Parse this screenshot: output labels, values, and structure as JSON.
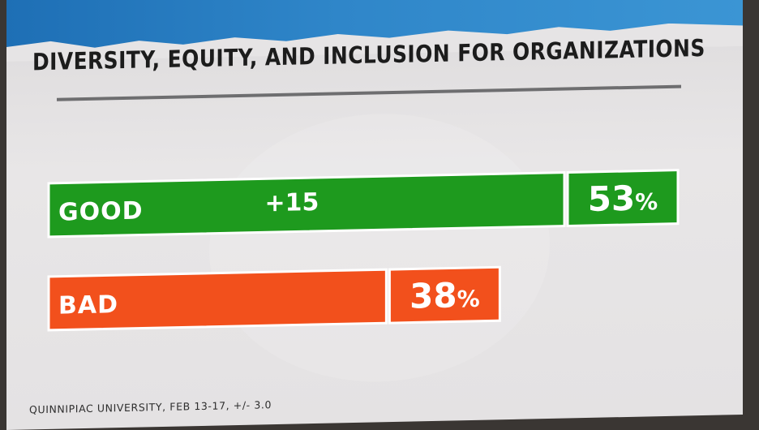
{
  "chart_data": {
    "type": "bar",
    "orientation": "horizontal",
    "title": "DIVERSITY, EQUITY, AND INCLUSION FOR ORGANIZATIONS",
    "categories": [
      "GOOD",
      "BAD"
    ],
    "values": [
      53,
      38
    ],
    "value_labels": [
      "53",
      "38"
    ],
    "value_suffix": "%",
    "margin_label": "+15",
    "colors": [
      "#1e9a1e",
      "#f2501c"
    ],
    "xlim": [
      0,
      53
    ],
    "grid": false,
    "legend": "none"
  },
  "source": "QUINNIPIAC UNIVERSITY, FEB 13-17, +/- 3.0"
}
